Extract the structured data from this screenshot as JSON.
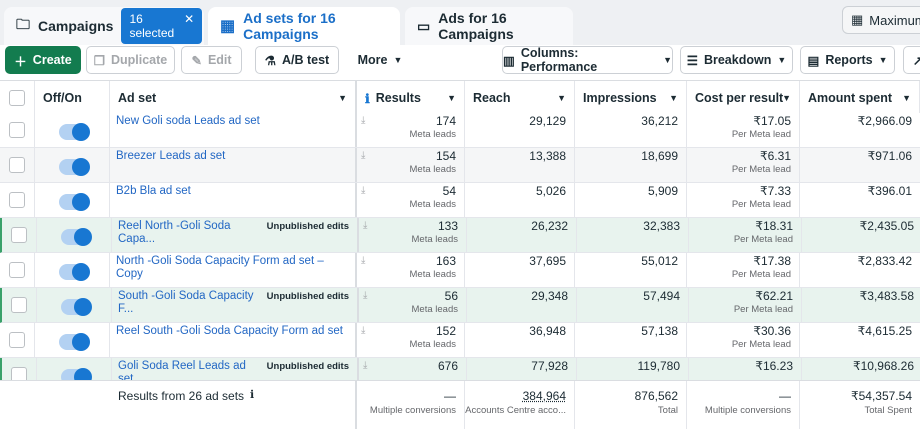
{
  "tabs": {
    "campaigns": "Campaigns",
    "selected": "16 selected",
    "adsets": "Ad sets for 16 Campaigns",
    "ads": "Ads for 16 Campaigns",
    "maximum": "Maximum"
  },
  "toolbar": {
    "create": "Create",
    "duplicate": "Duplicate",
    "edit": "Edit",
    "abtest": "A/B test",
    "more": "More",
    "columns": "Columns: Performance",
    "breakdown": "Breakdown",
    "reports": "Reports"
  },
  "headers": {
    "offon": "Off/On",
    "adset": "Ad set",
    "results": "Results",
    "reach": "Reach",
    "impressions": "Impressions",
    "cost": "Cost per result",
    "amount": "Amount spent"
  },
  "rows": [
    {
      "name": "New Goli soda Leads ad set",
      "badge": "",
      "results": "174",
      "results_sub": "Meta leads",
      "reach": "29,129",
      "impressions": "36,212",
      "cost": "₹17.05",
      "cost_sub": "Per Meta lead",
      "amount": "₹2,966.09"
    },
    {
      "name": "Breezer Leads ad set",
      "badge": "",
      "results": "154",
      "results_sub": "Meta leads",
      "reach": "13,388",
      "impressions": "18,699",
      "cost": "₹6.31",
      "cost_sub": "Per Meta lead",
      "amount": "₹971.06"
    },
    {
      "name": "B2b Bla ad set",
      "badge": "",
      "results": "54",
      "results_sub": "Meta leads",
      "reach": "5,026",
      "impressions": "5,909",
      "cost": "₹7.33",
      "cost_sub": "Per Meta lead",
      "amount": "₹396.01"
    },
    {
      "name": "Reel North -Goli Soda Capa...",
      "badge": "Unpublished edits",
      "results": "133",
      "results_sub": "Meta leads",
      "reach": "26,232",
      "impressions": "32,383",
      "cost": "₹18.31",
      "cost_sub": "Per Meta lead",
      "amount": "₹2,435.05"
    },
    {
      "name": "North -Goli Soda Capacity Form ad set – Copy",
      "badge": "",
      "results": "163",
      "results_sub": "Meta leads",
      "reach": "37,695",
      "impressions": "55,012",
      "cost": "₹17.38",
      "cost_sub": "Per Meta lead",
      "amount": "₹2,833.42"
    },
    {
      "name": "South -Goli Soda Capacity F...",
      "badge": "Unpublished edits",
      "results": "56",
      "results_sub": "Meta leads",
      "reach": "29,348",
      "impressions": "57,494",
      "cost": "₹62.21",
      "cost_sub": "Per Meta lead",
      "amount": "₹3,483.58"
    },
    {
      "name": "Reel South -Goli Soda Capacity Form ad set",
      "badge": "",
      "results": "152",
      "results_sub": "Meta leads",
      "reach": "36,948",
      "impressions": "57,138",
      "cost": "₹30.36",
      "cost_sub": "Per Meta lead",
      "amount": "₹4,615.25"
    },
    {
      "name": "Goli Soda Reel Leads ad set",
      "badge": "Unpublished edits",
      "results": "676",
      "results_sub": "",
      "reach": "77,928",
      "impressions": "119,780",
      "cost": "₹16.23",
      "cost_sub": "",
      "amount": "₹10,968.26"
    }
  ],
  "footer": {
    "label": "Results from 26 ad sets",
    "results": "—",
    "results_sub": "Multiple conversions",
    "reach": "384,964",
    "reach_sub": "Accounts Centre acco...",
    "impressions": "876,562",
    "impressions_sub": "Total",
    "cost": "—",
    "cost_sub": "Multiple conversions",
    "amount": "₹54,357.54",
    "amount_sub": "Total Spent"
  }
}
